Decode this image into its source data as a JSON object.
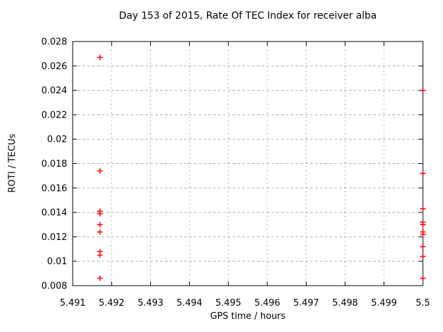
{
  "chart_data": {
    "type": "scatter",
    "title": "Day 153 of 2015, Rate Of TEC Index for receiver alba",
    "xlabel": "GPS time / hours",
    "ylabel": "ROTI / TECUs",
    "xlim": [
      5.491,
      5.5
    ],
    "ylim": [
      0.008,
      0.028
    ],
    "grid": true,
    "legend_position": "none",
    "colors": {
      "marker": "#ff0000",
      "grid": "#b0b0b0",
      "border": "#000000",
      "background": "#ffffff"
    },
    "xticks": [
      {
        "v": 5.491,
        "label": "5.491"
      },
      {
        "v": 5.492,
        "label": "5.492"
      },
      {
        "v": 5.493,
        "label": "5.493"
      },
      {
        "v": 5.494,
        "label": "5.494"
      },
      {
        "v": 5.495,
        "label": "5.495"
      },
      {
        "v": 5.496,
        "label": "5.496"
      },
      {
        "v": 5.497,
        "label": "5.497"
      },
      {
        "v": 5.498,
        "label": "5.498"
      },
      {
        "v": 5.499,
        "label": "5.499"
      },
      {
        "v": 5.5,
        "label": "5.5"
      }
    ],
    "yticks": [
      {
        "v": 0.008,
        "label": "0.008"
      },
      {
        "v": 0.01,
        "label": "0.01"
      },
      {
        "v": 0.012,
        "label": "0.012"
      },
      {
        "v": 0.014,
        "label": "0.014"
      },
      {
        "v": 0.016,
        "label": "0.016"
      },
      {
        "v": 0.018,
        "label": "0.018"
      },
      {
        "v": 0.02,
        "label": "0.02"
      },
      {
        "v": 0.022,
        "label": "0.022"
      },
      {
        "v": 0.024,
        "label": "0.024"
      },
      {
        "v": 0.026,
        "label": "0.026"
      },
      {
        "v": 0.028,
        "label": "0.028"
      }
    ],
    "series": [
      {
        "name": "roti",
        "marker": "plus",
        "points": [
          [
            5.4917,
            0.0267
          ],
          [
            5.4917,
            0.0174
          ],
          [
            5.4917,
            0.0141
          ],
          [
            5.4917,
            0.0139
          ],
          [
            5.4917,
            0.013
          ],
          [
            5.4917,
            0.0124
          ],
          [
            5.4917,
            0.0108
          ],
          [
            5.4917,
            0.0105
          ],
          [
            5.4917,
            0.0086
          ],
          [
            5.5,
            0.024
          ],
          [
            5.5,
            0.0172
          ],
          [
            5.5,
            0.0143
          ],
          [
            5.5,
            0.0132
          ],
          [
            5.5,
            0.013
          ],
          [
            5.5,
            0.0124
          ],
          [
            5.5,
            0.0122
          ],
          [
            5.5,
            0.0112
          ],
          [
            5.5,
            0.0104
          ],
          [
            5.5,
            0.0086
          ]
        ]
      }
    ]
  }
}
